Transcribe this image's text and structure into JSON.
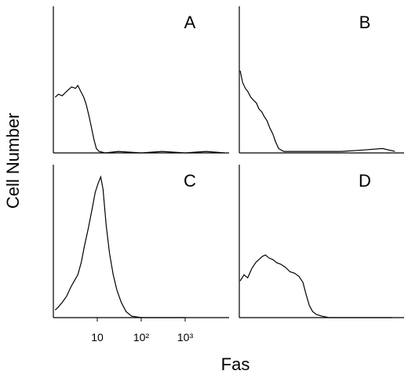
{
  "ylabel": "Cell Number",
  "xlabel": "Fas",
  "chart_data": [
    {
      "type": "line",
      "label": "A",
      "log_x": true,
      "xlim": [
        1,
        10000
      ],
      "ylim": [
        0,
        100
      ],
      "color": "#000000",
      "x": [
        1.1,
        1.3,
        1.6,
        2,
        2.6,
        3.2,
        3.6,
        4.2,
        4.9,
        5.6,
        6.5,
        7.4,
        8.4,
        9.5,
        11,
        15,
        30,
        100,
        300,
        1000,
        3000,
        8000
      ],
      "values": [
        38,
        40,
        39,
        42,
        45,
        44,
        46,
        42,
        38,
        33,
        25,
        17,
        9,
        3,
        1,
        0,
        1,
        0,
        1,
        0,
        1,
        0
      ]
    },
    {
      "type": "line",
      "label": "B",
      "log_x": true,
      "xlim": [
        1,
        10000
      ],
      "ylim": [
        0,
        100
      ],
      "color": "#000000",
      "x": [
        1.05,
        1.2,
        1.4,
        1.6,
        1.9,
        2.2,
        2.6,
        3,
        3.5,
        4,
        4.7,
        5.5,
        6.5,
        7.5,
        9,
        12,
        30,
        100,
        300,
        1000,
        3000,
        6000
      ],
      "values": [
        56,
        48,
        44,
        42,
        38,
        36,
        34,
        30,
        28,
        25,
        22,
        17,
        13,
        8,
        3,
        1,
        1,
        1,
        1,
        2,
        3,
        1
      ]
    },
    {
      "type": "line",
      "label": "C",
      "log_x": true,
      "xlim": [
        1,
        10000
      ],
      "ylim": [
        0,
        100
      ],
      "color": "#000000",
      "xticks": [
        10,
        {
          "value": 100,
          "label": "10²"
        },
        {
          "value": 1000,
          "label": "10³"
        }
      ],
      "x": [
        1.1,
        1.3,
        1.6,
        2,
        2.5,
        3,
        3.6,
        4.3,
        5.2,
        6.2,
        7.5,
        9,
        10.5,
        12,
        13.5,
        16,
        19,
        23,
        28,
        35,
        45,
        60,
        100,
        1000
      ],
      "values": [
        5,
        7,
        10,
        14,
        20,
        24,
        28,
        36,
        48,
        58,
        70,
        82,
        88,
        92,
        84,
        60,
        42,
        28,
        18,
        10,
        4,
        1,
        0,
        0
      ]
    },
    {
      "type": "line",
      "label": "D",
      "log_x": true,
      "xlim": [
        1,
        10000
      ],
      "ylim": [
        0,
        100
      ],
      "color": "#000000",
      "x": [
        1.05,
        1.3,
        1.6,
        2,
        2.5,
        3,
        3.6,
        4.3,
        5.2,
        6.5,
        8,
        10,
        13,
        17,
        22,
        28,
        35,
        42,
        50,
        60,
        75,
        100,
        150,
        1000,
        5000
      ],
      "values": [
        24,
        28,
        26,
        32,
        36,
        38,
        40,
        41,
        39,
        38,
        36,
        35,
        33,
        30,
        29,
        27,
        23,
        15,
        8,
        4,
        2,
        1,
        0,
        0,
        0
      ]
    }
  ]
}
